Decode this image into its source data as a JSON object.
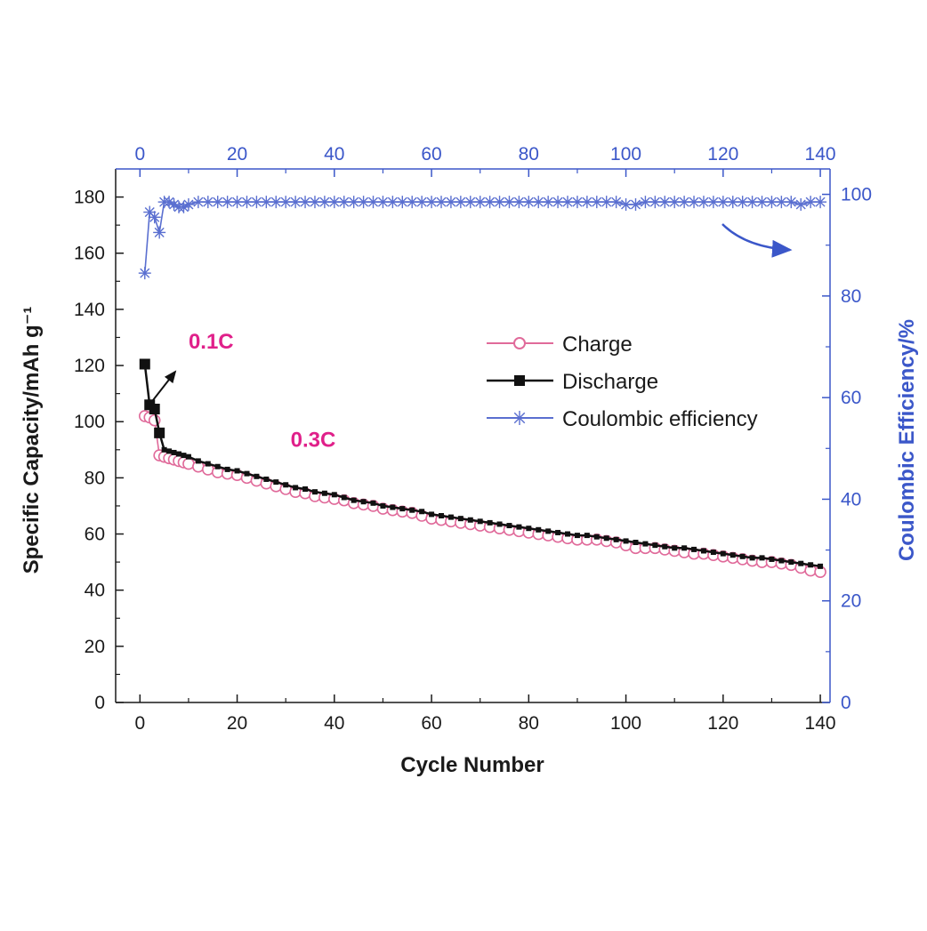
{
  "chart_data": {
    "type": "scatter",
    "xlabel": "Cycle Number",
    "ylabel_left": "Specific Capacity/mAh g⁻¹",
    "ylabel_right": "Coulombic Efficiency/%",
    "x_range": [
      -5,
      142
    ],
    "y_left_range": [
      0,
      190
    ],
    "y_right_range": [
      0,
      105
    ],
    "x_ticks": [
      "0",
      "20",
      "40",
      "60",
      "80",
      "100",
      "120",
      "140"
    ],
    "y_left_ticks": [
      "0",
      "20",
      "40",
      "60",
      "80",
      "100",
      "120",
      "140",
      "160",
      "180"
    ],
    "y_right_ticks": [
      "0",
      "20",
      "40",
      "60",
      "80",
      "100"
    ],
    "legend_position": "center-right",
    "colors": {
      "charge": "#e06a9a",
      "discharge": "#111111",
      "coulombic": "#5a6fd0",
      "axis_right": "#3b57c9",
      "annotation": "#e0208a"
    },
    "annotations": [
      {
        "text": "0.1C",
        "x": 10,
        "y": 126
      },
      {
        "text": "0.3C",
        "x": 31,
        "y": 91
      }
    ],
    "series": [
      {
        "name": "Charge",
        "axis": "left",
        "marker": "open-circle",
        "x": [
          1,
          2,
          3,
          4,
          5,
          6,
          7,
          8,
          9,
          10,
          12,
          14,
          16,
          18,
          20,
          22,
          24,
          26,
          28,
          30,
          32,
          34,
          36,
          38,
          40,
          42,
          44,
          46,
          48,
          50,
          52,
          54,
          56,
          58,
          60,
          62,
          64,
          66,
          68,
          70,
          72,
          74,
          76,
          78,
          80,
          82,
          84,
          86,
          88,
          90,
          92,
          94,
          96,
          98,
          100,
          102,
          104,
          106,
          108,
          110,
          112,
          114,
          116,
          118,
          120,
          122,
          124,
          126,
          128,
          130,
          132,
          134,
          136,
          138,
          140
        ],
        "y": [
          102,
          101.5,
          100.5,
          88,
          87.5,
          87,
          86.5,
          86,
          85.5,
          85,
          84,
          83,
          82,
          81.5,
          81,
          80,
          79,
          78,
          77,
          76,
          75,
          74.5,
          73.5,
          73,
          72.5,
          72,
          71,
          70.5,
          70,
          69,
          68.5,
          68,
          67.5,
          66.5,
          65.5,
          65,
          64.5,
          64,
          63.5,
          63,
          62.5,
          62,
          61.5,
          61,
          60.5,
          60,
          59.5,
          59,
          58.5,
          58,
          58,
          58,
          57.5,
          57,
          56,
          55,
          55,
          55,
          54.5,
          54,
          53.5,
          53,
          53,
          52.5,
          52,
          51.5,
          51,
          50.5,
          50,
          50,
          49.5,
          49,
          48,
          47,
          46.5
        ]
      },
      {
        "name": "Discharge",
        "axis": "left",
        "marker": "filled-square",
        "x": [
          1,
          2,
          3,
          4,
          5,
          6,
          7,
          8,
          9,
          10,
          12,
          14,
          16,
          18,
          20,
          22,
          24,
          26,
          28,
          30,
          32,
          34,
          36,
          38,
          40,
          42,
          44,
          46,
          48,
          50,
          52,
          54,
          56,
          58,
          60,
          62,
          64,
          66,
          68,
          70,
          72,
          74,
          76,
          78,
          80,
          82,
          84,
          86,
          88,
          90,
          92,
          94,
          96,
          98,
          100,
          102,
          104,
          106,
          108,
          110,
          112,
          114,
          116,
          118,
          120,
          122,
          124,
          126,
          128,
          130,
          132,
          134,
          136,
          138,
          140
        ],
        "y": [
          120.5,
          106,
          104.5,
          96,
          90,
          89.5,
          89,
          88.5,
          88,
          87.5,
          86,
          85,
          84,
          83,
          82.5,
          81.5,
          80.5,
          79.5,
          78.5,
          77.5,
          76.5,
          76,
          75,
          74.5,
          74,
          73,
          72,
          71.5,
          71,
          70,
          69.5,
          69,
          68.5,
          68,
          67,
          66.5,
          66,
          65.5,
          65,
          64.5,
          64,
          63.5,
          63,
          62.5,
          62,
          61.5,
          61,
          60.5,
          60,
          59.5,
          59.5,
          59,
          58.5,
          58,
          57.5,
          57,
          56.5,
          56,
          55.5,
          55,
          55,
          54.5,
          54,
          53.5,
          53,
          52.5,
          52,
          51.5,
          51.5,
          51,
          50.5,
          50,
          49.5,
          49,
          48.5
        ]
      },
      {
        "name": "Coulombic efficiency",
        "axis": "right",
        "marker": "asterisk",
        "x": [
          1,
          2,
          3,
          4,
          5,
          6,
          7,
          8,
          9,
          10,
          12,
          14,
          16,
          18,
          20,
          22,
          24,
          26,
          28,
          30,
          32,
          34,
          36,
          38,
          40,
          42,
          44,
          46,
          48,
          50,
          52,
          54,
          56,
          58,
          60,
          62,
          64,
          66,
          68,
          70,
          72,
          74,
          76,
          78,
          80,
          82,
          84,
          86,
          88,
          90,
          92,
          94,
          96,
          98,
          100,
          102,
          104,
          106,
          108,
          110,
          112,
          114,
          116,
          118,
          120,
          122,
          124,
          126,
          128,
          130,
          132,
          134,
          136,
          138,
          140
        ],
        "y": [
          84.5,
          96.5,
          95.5,
          92.5,
          98.5,
          98.5,
          98,
          97.5,
          97.5,
          98,
          98.5,
          98.5,
          98.5,
          98.5,
          98.5,
          98.5,
          98.5,
          98.5,
          98.5,
          98.5,
          98.5,
          98.5,
          98.5,
          98.5,
          98.5,
          98.5,
          98.5,
          98.5,
          98.5,
          98.5,
          98.5,
          98.5,
          98.5,
          98.5,
          98.5,
          98.5,
          98.5,
          98.5,
          98.5,
          98.5,
          98.5,
          98.5,
          98.5,
          98.5,
          98.5,
          98.5,
          98.5,
          98.5,
          98.5,
          98.5,
          98.5,
          98.5,
          98.5,
          98.5,
          98,
          98,
          98.5,
          98.5,
          98.5,
          98.5,
          98.5,
          98.5,
          98.5,
          98.5,
          98.5,
          98.5,
          98.5,
          98.5,
          98.5,
          98.5,
          98.5,
          98.5,
          98,
          98.5,
          98.5
        ]
      }
    ]
  }
}
